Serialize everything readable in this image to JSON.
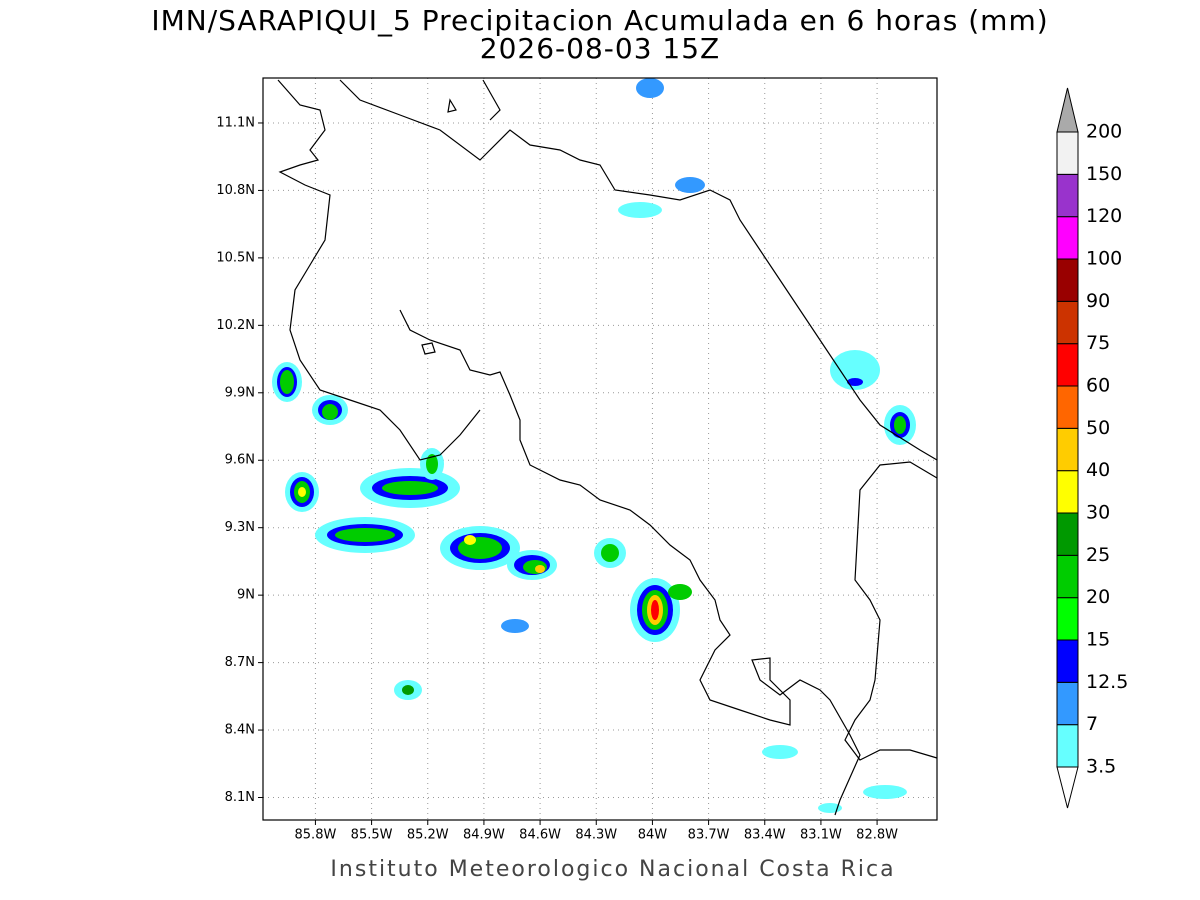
{
  "title": "IMN/SARAPIQUI_5 Precipitacion Acumulada en 6 horas (mm)",
  "subtitle": "2026-08-03 15Z",
  "footer": "Instituto Meteorologico Nacional Costa Rica",
  "map": {
    "xlim": [
      -86.08,
      -82.48
    ],
    "ylim": [
      8.0,
      11.3
    ],
    "xticks": [
      {
        "value": -85.8,
        "label": "85.8W"
      },
      {
        "value": -85.5,
        "label": "85.5W"
      },
      {
        "value": -85.2,
        "label": "85.2W"
      },
      {
        "value": -84.9,
        "label": "84.9W"
      },
      {
        "value": -84.6,
        "label": "84.6W"
      },
      {
        "value": -84.3,
        "label": "84.3W"
      },
      {
        "value": -84.0,
        "label": "84W"
      },
      {
        "value": -83.7,
        "label": "83.7W"
      },
      {
        "value": -83.4,
        "label": "83.4W"
      },
      {
        "value": -83.1,
        "label": "83.1W"
      },
      {
        "value": -82.8,
        "label": "82.8W"
      }
    ],
    "yticks": [
      {
        "value": 8.1,
        "label": "8.1N"
      },
      {
        "value": 8.4,
        "label": "8.4N"
      },
      {
        "value": 8.7,
        "label": "8.7N"
      },
      {
        "value": 9.0,
        "label": "9N"
      },
      {
        "value": 9.3,
        "label": "9.3N"
      },
      {
        "value": 9.6,
        "label": "9.6N"
      },
      {
        "value": 9.9,
        "label": "9.9N"
      },
      {
        "value": 10.2,
        "label": "10.2N"
      },
      {
        "value": 10.5,
        "label": "10.5N"
      },
      {
        "value": 10.8,
        "label": "10.8N"
      },
      {
        "value": 11.1,
        "label": "11.1N"
      }
    ],
    "grid": true
  },
  "colorbar": {
    "levels": [
      3.5,
      7,
      12.5,
      15,
      20,
      25,
      30,
      40,
      50,
      60,
      75,
      90,
      100,
      120,
      150,
      200
    ],
    "colors": [
      "#66ffff",
      "#3399ff",
      "#0000ff",
      "#00ff00",
      "#00cc00",
      "#009900",
      "#ffff00",
      "#ffcc00",
      "#ff6600",
      "#ff0000",
      "#cc3300",
      "#990000",
      "#ff00ff",
      "#9933cc",
      "#f2f2f2"
    ],
    "under_color": "#ffffff",
    "over_color": "#aaaaaa"
  }
}
